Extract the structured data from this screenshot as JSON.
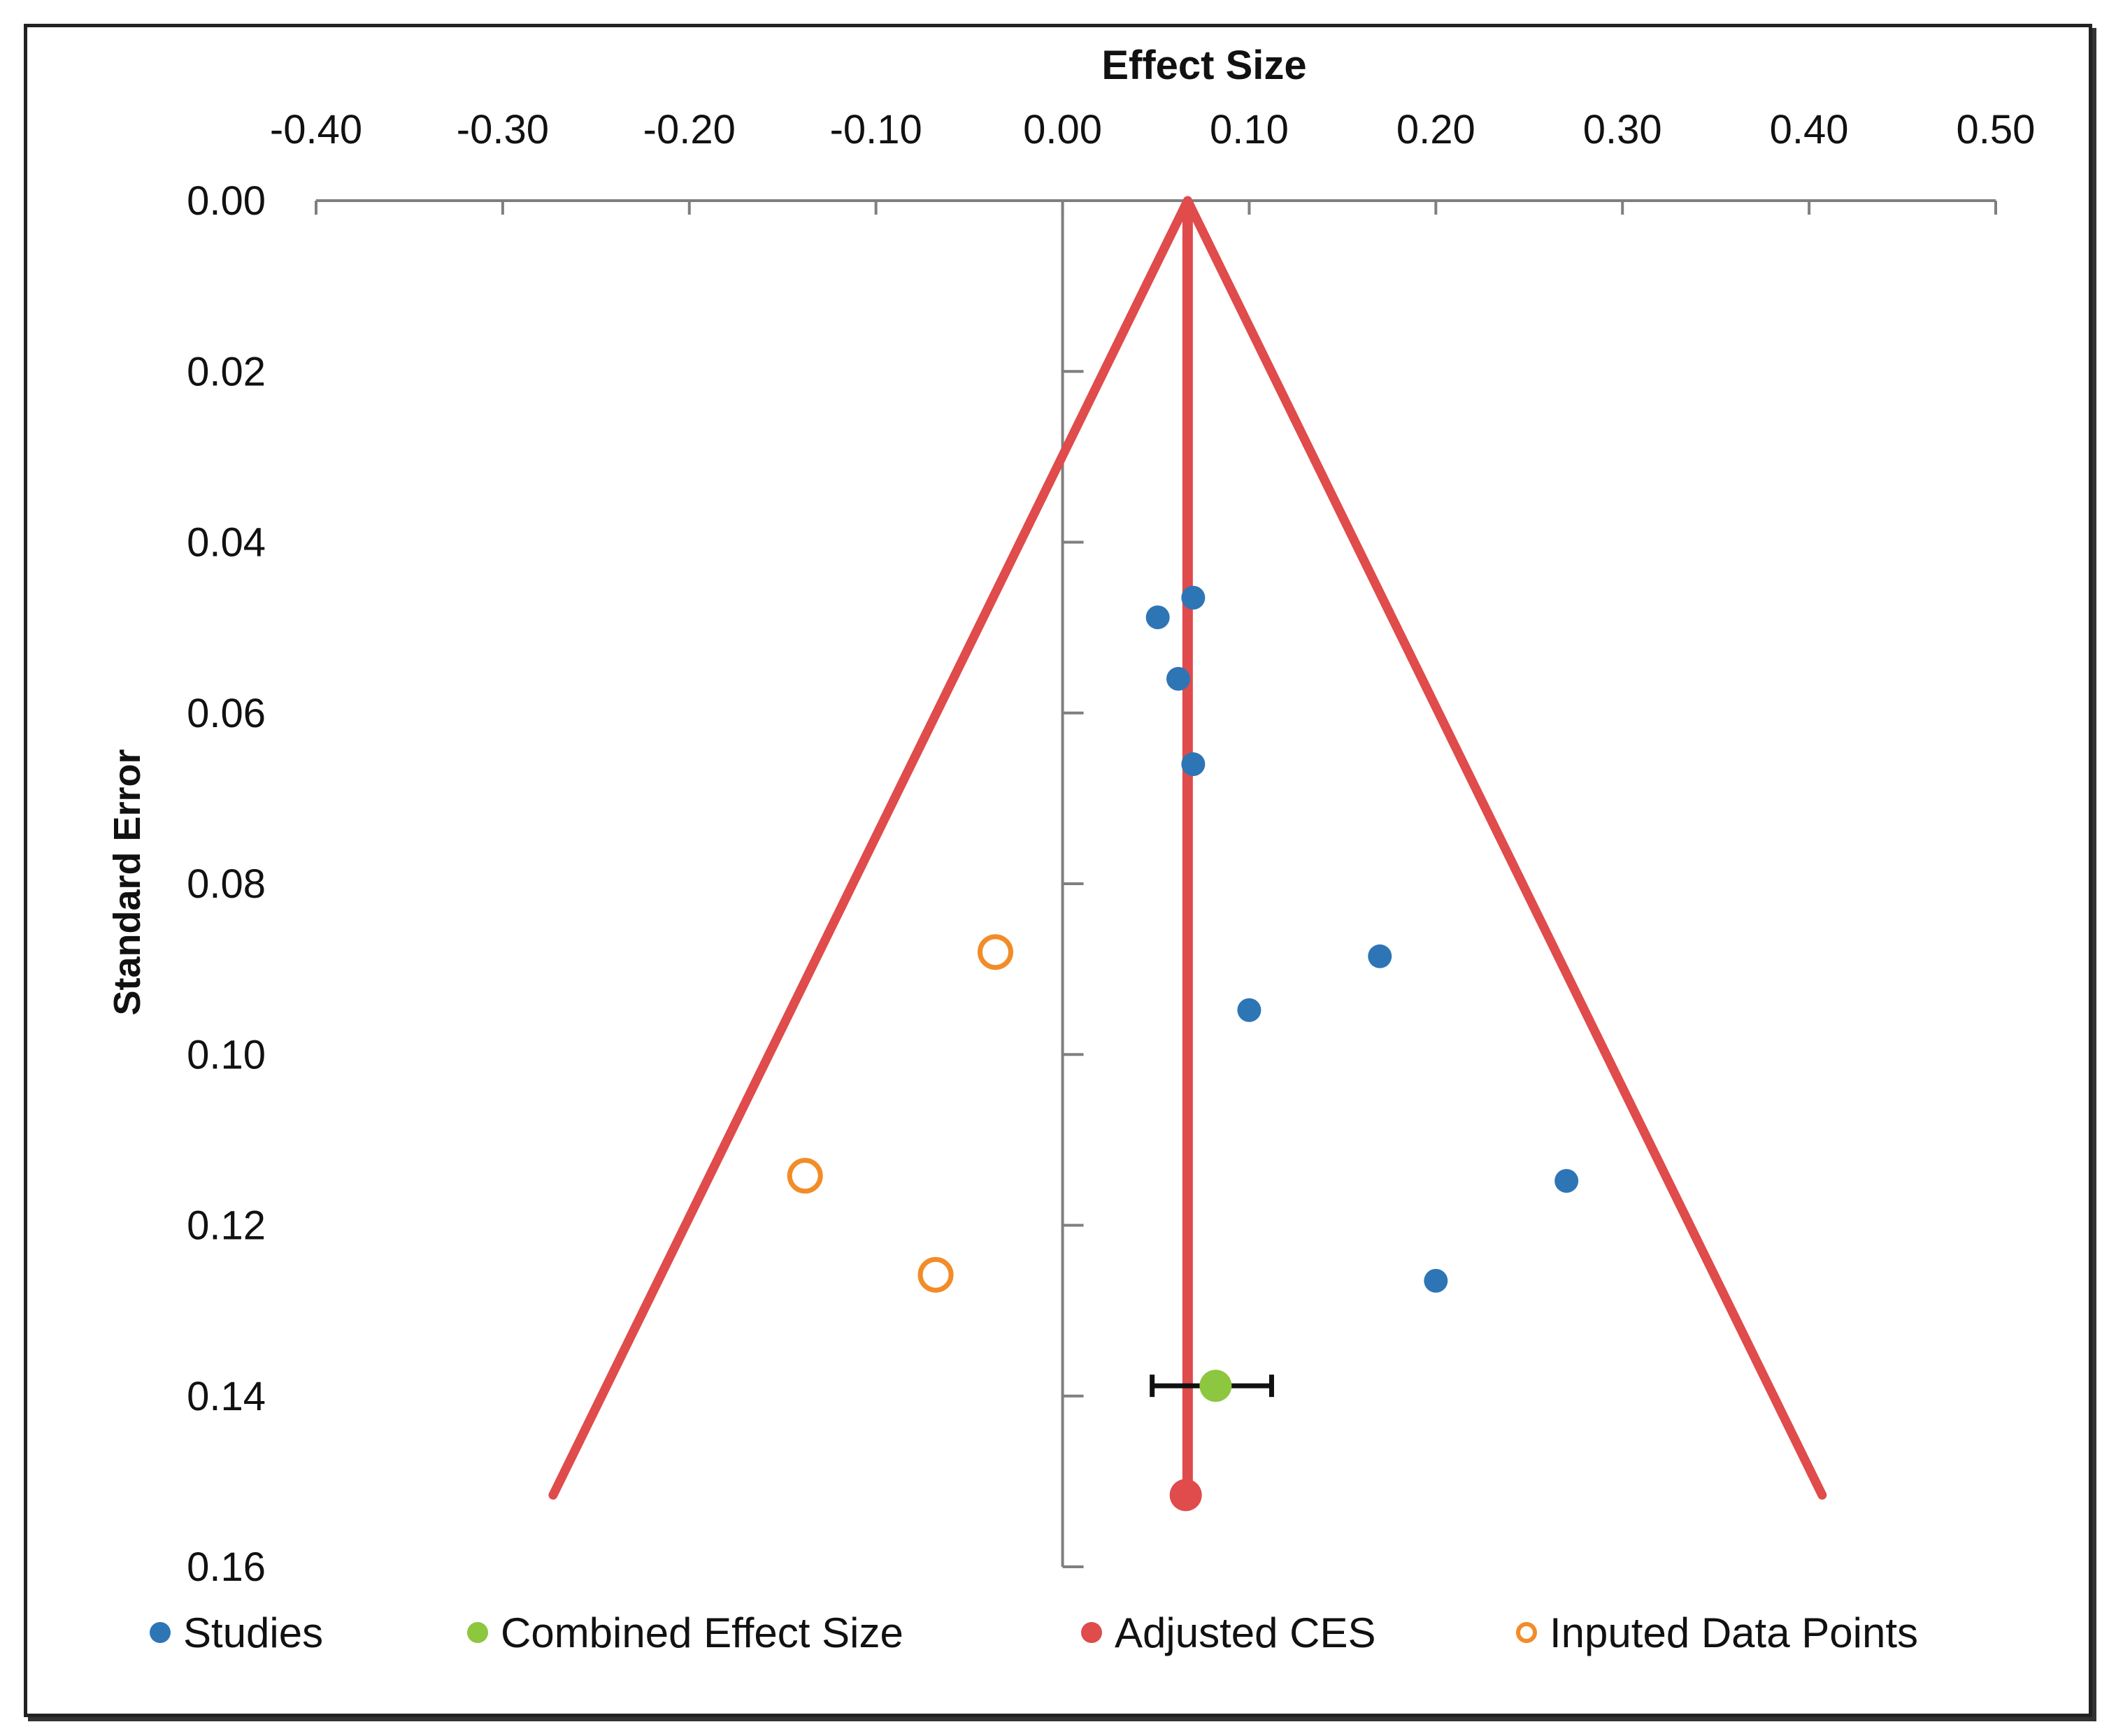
{
  "chart_data": {
    "type": "scatter",
    "title": "Effect Size",
    "xlabel": "Effect Size",
    "ylabel": "Standard Error",
    "xlim": [
      -0.4,
      0.5
    ],
    "ylim": [
      0.0,
      0.16
    ],
    "y_reversed": true,
    "x_axis_position": "top",
    "x_ticks": [
      -0.4,
      -0.3,
      -0.2,
      -0.1,
      0.0,
      0.1,
      0.2,
      0.3,
      0.4,
      0.5
    ],
    "x_tick_labels": [
      "-0.40",
      "-0.30",
      "-0.20",
      "-0.10",
      "0.00",
      "0.10",
      "0.20",
      "0.30",
      "0.40",
      "0.50"
    ],
    "y_ticks": [
      0.0,
      0.02,
      0.04,
      0.06,
      0.08,
      0.1,
      0.12,
      0.14,
      0.16
    ],
    "y_tick_labels": [
      "0.00",
      "0.02",
      "0.04",
      "0.06",
      "0.08",
      "0.10",
      "0.12",
      "0.14",
      "0.16"
    ],
    "grid": false,
    "legend_position": "bottom",
    "series": [
      {
        "name": "Studies",
        "color": "#2E75B6",
        "marker": "filled-circle",
        "points": [
          {
            "x": 0.07,
            "y": 0.0465
          },
          {
            "x": 0.051,
            "y": 0.0488
          },
          {
            "x": 0.062,
            "y": 0.056
          },
          {
            "x": 0.07,
            "y": 0.066
          },
          {
            "x": 0.17,
            "y": 0.0885
          },
          {
            "x": 0.1,
            "y": 0.0948
          },
          {
            "x": 0.27,
            "y": 0.1148
          },
          {
            "x": 0.2,
            "y": 0.1265
          }
        ]
      },
      {
        "name": "Combined Effect Size",
        "color": "#8DC63F",
        "marker": "filled-circle",
        "points": [
          {
            "x": 0.082,
            "y": 0.1388
          }
        ],
        "error_bar": {
          "low": 0.048,
          "high": 0.112
        }
      },
      {
        "name": "Adjusted CES",
        "color": "#E04B4B",
        "marker": "filled-circle",
        "points": [
          {
            "x": 0.066,
            "y": 0.1516
          }
        ]
      },
      {
        "name": "Inputed Data Points",
        "color": "#F28C28",
        "marker": "hollow-circle",
        "points": [
          {
            "x": -0.036,
            "y": 0.088
          },
          {
            "x": -0.138,
            "y": 0.1142
          },
          {
            "x": -0.068,
            "y": 0.1258
          }
        ]
      }
    ],
    "funnel": {
      "color": "#E04B4B",
      "center": 0.067,
      "apex_y": 0.0,
      "bottom_y": 0.1516,
      "left_x": -0.273,
      "right_x": 0.407
    }
  }
}
